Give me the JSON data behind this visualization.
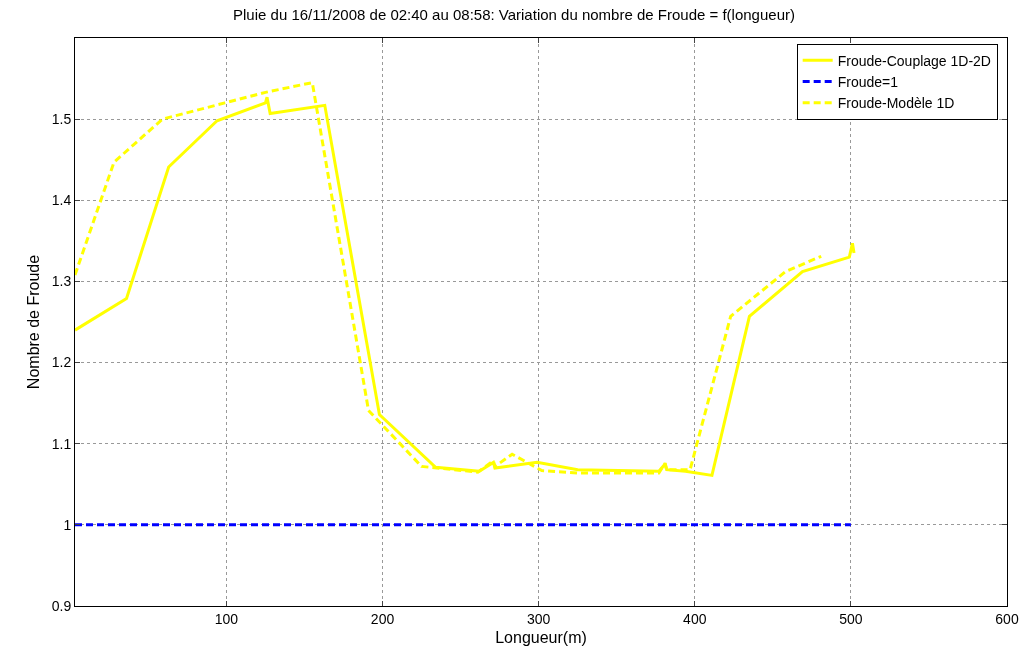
{
  "chart_data": {
    "type": "line",
    "title": "Pluie du 16/11/2008 de 02:40 au 08:58: Variation du nombre de Froude = f(longueur)",
    "xlabel": "Longueur(m)",
    "ylabel": "Nombre de Froude",
    "xlim": [
      3,
      600
    ],
    "xticks": [
      100,
      200,
      300,
      400,
      500,
      600
    ],
    "ylim": [
      0.9,
      1.6
    ],
    "yticks": [
      0.9,
      1,
      1.1,
      1.2,
      1.3,
      1.4,
      1.5
    ],
    "grid": true,
    "legend": "top right",
    "marker": "none",
    "series": [
      {
        "name": "Froude-Couplage 1D-2D",
        "color": "#ffff00",
        "line_style": "solid",
        "x": [
          3,
          36,
          63,
          94,
          125,
          126,
          128,
          163,
          198,
          234,
          262,
          271,
          272,
          299,
          325,
          377,
          381,
          382,
          394,
          411,
          435,
          469,
          499,
          501,
          502
        ],
        "values": [
          1.24,
          1.279,
          1.441,
          1.498,
          1.52,
          1.527,
          1.507,
          1.517,
          1.136,
          1.071,
          1.066,
          1.077,
          1.07,
          1.077,
          1.068,
          1.066,
          1.075,
          1.068,
          1.066,
          1.061,
          1.257,
          1.312,
          1.33,
          1.347,
          1.335
        ]
      },
      {
        "name": "Froude=1",
        "color": "#0000ff",
        "line_style": "dashed",
        "x": [
          3,
          500
        ],
        "values": [
          1,
          1
        ]
      },
      {
        "name": "Froude-Modèle 1D",
        "color": "#ffff00",
        "line_style": "dashed",
        "x": [
          3,
          28,
          59,
          99,
          125,
          155,
          191,
          225,
          261,
          271,
          272,
          283,
          302,
          325,
          377,
          381,
          382,
          397,
          423,
          458,
          481
        ],
        "values": [
          1.308,
          1.447,
          1.5,
          1.52,
          1.533,
          1.545,
          1.141,
          1.072,
          1.065,
          1.079,
          1.072,
          1.087,
          1.067,
          1.064,
          1.064,
          1.076,
          1.068,
          1.068,
          1.257,
          1.312,
          1.331
        ]
      }
    ]
  }
}
